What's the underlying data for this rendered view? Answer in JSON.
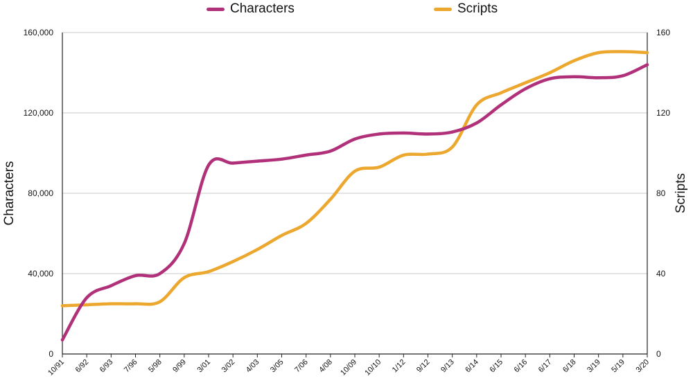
{
  "chart_data": {
    "type": "line",
    "title": "",
    "xlabel": "",
    "ylabel_left": "Characters",
    "ylabel_right": "Scripts",
    "categories": [
      "10/91",
      "6/92",
      "6/93",
      "7/96",
      "5/98",
      "9/99",
      "3/01",
      "3/02",
      "4/03",
      "3/05",
      "7/06",
      "4/08",
      "10/09",
      "10/10",
      "1/12",
      "9/12",
      "9/13",
      "6/14",
      "6/15",
      "6/16",
      "6/17",
      "6/18",
      "3/19",
      "5/19",
      "3/20"
    ],
    "left_axis": {
      "min": 0,
      "max": 160000,
      "ticks": [
        "0",
        "40,000",
        "80,000",
        "120,000",
        "160,000"
      ],
      "tick_values": [
        0,
        40000,
        80000,
        120000,
        160000
      ]
    },
    "right_axis": {
      "min": 0,
      "max": 160,
      "ticks": [
        "0",
        "40",
        "80",
        "120",
        "160"
      ],
      "tick_values": [
        0,
        40,
        80,
        120,
        160
      ]
    },
    "grid": true,
    "legend_position": "top",
    "series": [
      {
        "name": "Characters",
        "axis": "left",
        "color": "#b03179",
        "values": [
          7000,
          28000,
          34000,
          39000,
          40000,
          55000,
          94000,
          95000,
          96000,
          97000,
          99000,
          101000,
          107000,
          109500,
          110000,
          109500,
          110500,
          115000,
          124000,
          132000,
          137000,
          138000,
          137500,
          138500,
          144000
        ]
      },
      {
        "name": "Scripts",
        "axis": "right",
        "color": "#eca72e",
        "values": [
          24,
          24.5,
          25,
          25,
          26,
          38,
          41,
          46,
          52,
          59,
          65,
          77,
          91,
          93,
          99,
          99.5,
          103,
          124,
          130,
          135,
          140,
          146,
          150,
          150.5,
          150
        ]
      }
    ]
  }
}
